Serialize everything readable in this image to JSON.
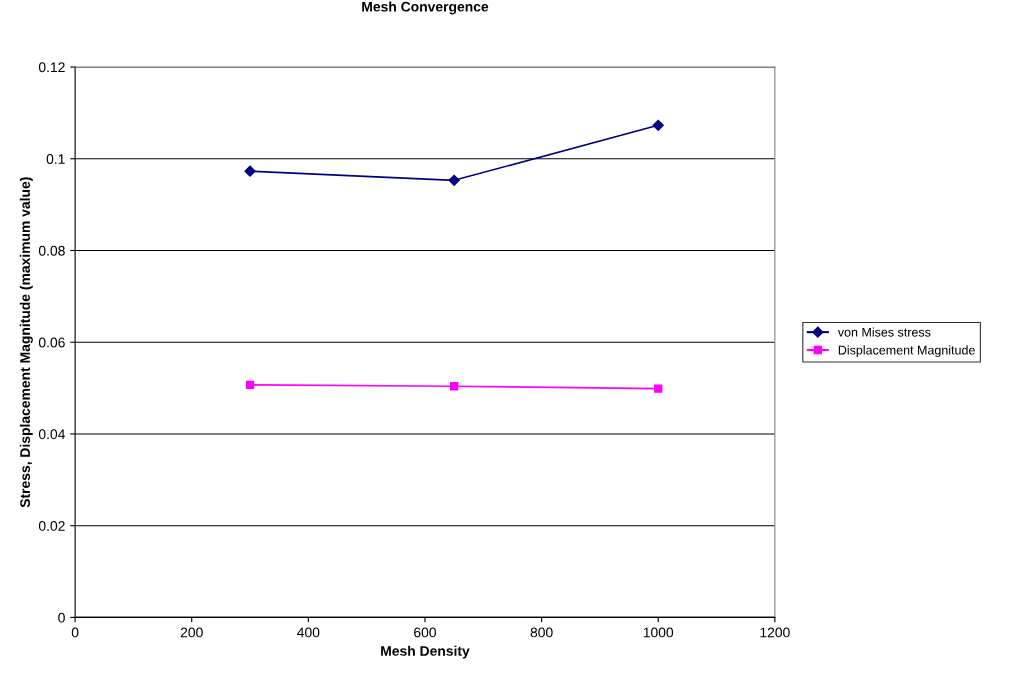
{
  "chart_data": {
    "type": "line",
    "title": "Mesh Convergence",
    "xlabel": "Mesh Density",
    "ylabel": "Stress, Displacement Magnitude (maximum value)",
    "x": [
      300,
      650,
      1000
    ],
    "series": [
      {
        "name": "von Mises stress",
        "color": "#000080",
        "marker": "diamond",
        "values": [
          0.0973,
          0.0953,
          0.1073
        ]
      },
      {
        "name": "Displacement Magnitude",
        "color": "#ff00ff",
        "marker": "square",
        "values": [
          0.0507,
          0.0504,
          0.0499
        ]
      }
    ],
    "xlim": [
      0,
      1200
    ],
    "xticks": [
      0,
      200,
      400,
      600,
      800,
      1000,
      1200
    ],
    "ylim": [
      0,
      0.12
    ],
    "yticks": [
      0,
      0.02,
      0.04,
      0.06,
      0.08,
      0.1,
      0.12
    ],
    "grid": "y",
    "legend": "right"
  }
}
